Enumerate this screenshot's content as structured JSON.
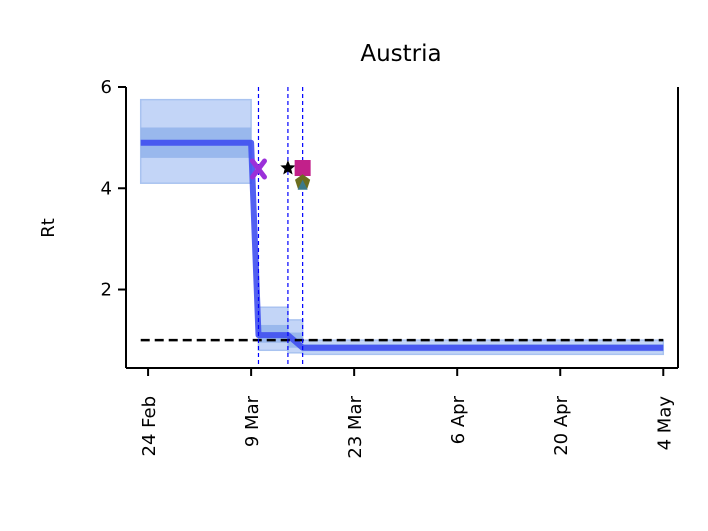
{
  "chart_data": {
    "type": "line",
    "title": "Austria",
    "xlabel": "",
    "ylabel": "Rt",
    "ylim": [
      0.45,
      6.0
    ],
    "xlim": [
      "2020-02-21",
      "2020-05-06"
    ],
    "yticks": [
      2,
      4,
      6
    ],
    "xticks": [
      "2020-02-24",
      "2020-03-09",
      "2020-03-23",
      "2020-04-06",
      "2020-04-20",
      "2020-05-04"
    ],
    "xtick_labels": [
      "24 Feb",
      "9 Mar",
      "23 Mar",
      "6 Apr",
      "20 Apr",
      "4 May"
    ],
    "grid": false,
    "colors": {
      "line": "#3f4ff0",
      "band_outer": "#c3d5f7",
      "band_inner": "#92b3eb",
      "threshold": "#000000",
      "event_lines": "#0000ff"
    },
    "rt_series": [
      {
        "x": "2020-02-23",
        "y": 4.9
      },
      {
        "x": "2020-03-09",
        "y": 4.9
      },
      {
        "x": "2020-03-10",
        "y": 1.1
      },
      {
        "x": "2020-03-14",
        "y": 1.1
      },
      {
        "x": "2020-03-16",
        "y": 0.85
      },
      {
        "x": "2020-05-04",
        "y": 0.85
      }
    ],
    "band_50": [
      {
        "x_start": "2020-02-23",
        "x_end": "2020-03-09",
        "low": 4.6,
        "high": 5.2
      },
      {
        "x_start": "2020-03-10",
        "x_end": "2020-03-14",
        "low": 0.95,
        "high": 1.3
      },
      {
        "x_start": "2020-03-14",
        "x_end": "2020-03-16",
        "low": 0.85,
        "high": 1.15
      },
      {
        "x_start": "2020-03-16",
        "x_end": "2020-05-04",
        "low": 0.78,
        "high": 0.92
      }
    ],
    "band_95": [
      {
        "x_start": "2020-02-23",
        "x_end": "2020-03-09",
        "low": 4.1,
        "high": 5.75
      },
      {
        "x_start": "2020-03-10",
        "x_end": "2020-03-14",
        "low": 0.8,
        "high": 1.65
      },
      {
        "x_start": "2020-03-14",
        "x_end": "2020-03-16",
        "low": 0.75,
        "high": 1.4
      },
      {
        "x_start": "2020-03-16",
        "x_end": "2020-05-04",
        "low": 0.72,
        "high": 1.0
      }
    ],
    "threshold": 1.0,
    "event_lines": [
      "2020-03-10",
      "2020-03-14",
      "2020-03-16"
    ],
    "markers": [
      {
        "x": "2020-03-10",
        "y": 4.38,
        "shape": "x",
        "color": "#9b30d9"
      },
      {
        "x": "2020-03-14",
        "y": 4.4,
        "shape": "star",
        "color": "#000000"
      },
      {
        "x": "2020-03-16",
        "y": 4.4,
        "shape": "square",
        "color": "#c2208a"
      },
      {
        "x": "2020-03-16",
        "y": 4.12,
        "shape": "pentagon",
        "color": "#6b6e1f"
      },
      {
        "x": "2020-03-16",
        "y": 4.05,
        "shape": "triangle",
        "color": "#3a7a8a"
      }
    ]
  }
}
